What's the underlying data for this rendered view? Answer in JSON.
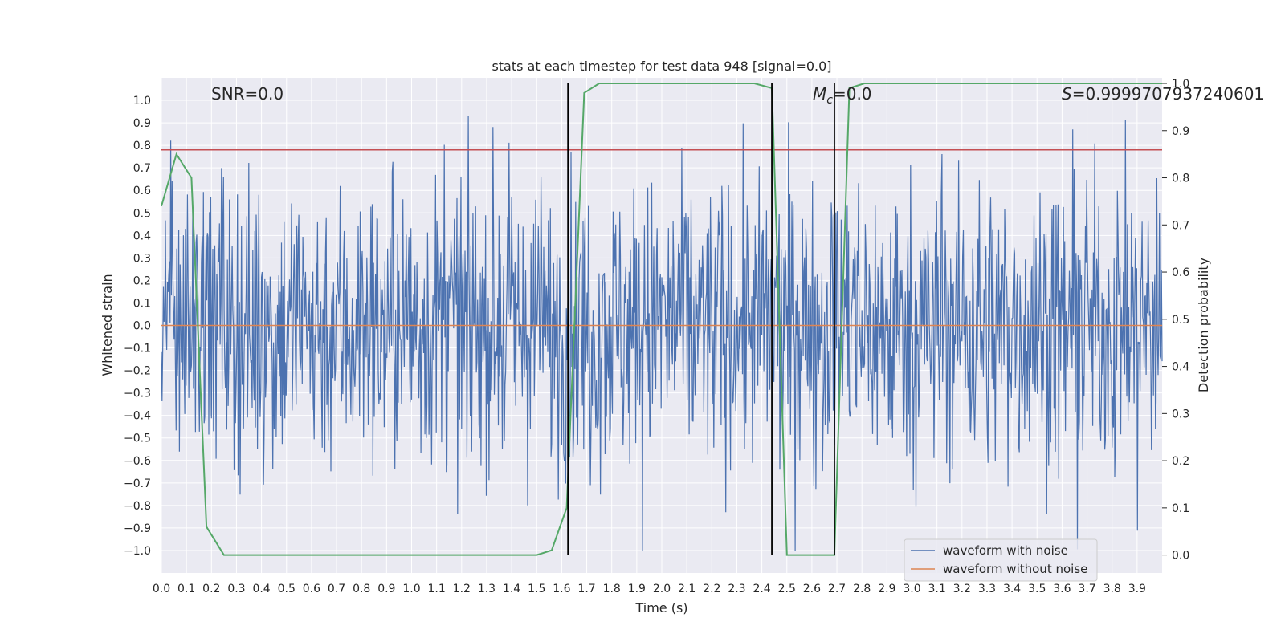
{
  "chart_data": {
    "type": "line",
    "title": "stats at each timestep for test data 948 [signal=0.0]",
    "xlabel": "Time (s)",
    "ylabel": "Whitened strain",
    "y2label": "Detection probability",
    "xlim": [
      0.0,
      4.0
    ],
    "ylim": [
      -1.1,
      1.1
    ],
    "y2lim": [
      -0.05,
      1.0
    ],
    "x_ticks": [
      0.0,
      0.1,
      0.2,
      0.3,
      0.4,
      0.5,
      0.6,
      0.7,
      0.8,
      0.9,
      1.0,
      1.1,
      1.2,
      1.3,
      1.4,
      1.5,
      1.6,
      1.7,
      1.8,
      1.9,
      2.0,
      2.1,
      2.2,
      2.3,
      2.4,
      2.5,
      2.6,
      2.7,
      2.8,
      2.9,
      3.0,
      3.1,
      3.2,
      3.3,
      3.4,
      3.5,
      3.6,
      3.7,
      3.8,
      3.9
    ],
    "y_ticks": [
      1.0,
      0.9,
      0.8,
      0.7,
      0.6,
      0.5,
      0.4,
      0.3,
      0.2,
      0.1,
      0.0,
      -0.1,
      -0.2,
      -0.3,
      -0.4,
      -0.5,
      -0.6,
      -0.7,
      -0.8,
      -0.9,
      -1.0
    ],
    "y2_ticks": [
      0.0,
      0.1,
      0.2,
      0.3,
      0.4,
      0.5,
      0.6,
      0.7,
      0.8,
      0.9,
      1.0
    ],
    "annotations": {
      "snr": "SNR=0.0",
      "mc_main": "M",
      "mc_sub": "c",
      "mc_value": "=0.0",
      "s_main": "S",
      "s_value": "=0.9999707937240601"
    },
    "threshold_y": 0.78,
    "trigger_times": [
      1.625,
      2.44,
      2.69
    ],
    "detection_probability": {
      "x": [
        0.0,
        0.06,
        0.12,
        0.18,
        0.25,
        0.31,
        0.37,
        0.44,
        0.5,
        0.56,
        0.62,
        0.69,
        0.75,
        0.81,
        0.87,
        0.94,
        1.0,
        1.06,
        1.12,
        1.19,
        1.25,
        1.31,
        1.37,
        1.44,
        1.5,
        1.56,
        1.62,
        1.69,
        1.75,
        1.81,
        1.87,
        1.94,
        2.0,
        2.06,
        2.12,
        2.19,
        2.25,
        2.31,
        2.37,
        2.44,
        2.5,
        2.56,
        2.62,
        2.69,
        2.75,
        2.81,
        2.87,
        2.94,
        3.0,
        3.06,
        3.12,
        3.19,
        3.25,
        3.31,
        3.37,
        3.44,
        3.5,
        3.56,
        3.62,
        3.69,
        3.75,
        3.81,
        3.87,
        3.94,
        4.0
      ],
      "values": [
        0.74,
        0.85,
        0.8,
        0.06,
        0.0,
        0.0,
        0.0,
        0.0,
        0.0,
        0.0,
        0.0,
        0.0,
        0.0,
        0.0,
        0.0,
        0.0,
        0.0,
        0.0,
        0.0,
        0.0,
        0.0,
        0.0,
        0.0,
        0.0,
        0.0,
        0.01,
        0.1,
        0.98,
        1.0,
        1.0,
        1.0,
        1.0,
        1.0,
        1.0,
        1.0,
        1.0,
        1.0,
        1.0,
        1.0,
        0.99,
        0.0,
        0.0,
        0.0,
        0.0,
        0.99,
        1.0,
        1.0,
        1.0,
        1.0,
        1.0,
        1.0,
        1.0,
        1.0,
        1.0,
        1.0,
        1.0,
        1.0,
        1.0,
        1.0,
        1.0,
        1.0,
        1.0,
        1.0,
        1.0,
        1.0
      ]
    },
    "series": [
      {
        "name": "waveform with noise",
        "color": "#4c72b0",
        "values_description": "dense noisy strain samples roughly within [-1.0, 1.0]"
      },
      {
        "name": "waveform without noise",
        "color": "#dd8452",
        "values": [
          0.0,
          0.0
        ]
      }
    ],
    "colors": {
      "noise": "#4c72b0",
      "clean": "#dd8452",
      "probability": "#55a868",
      "threshold": "#c44e52",
      "trigger": "#000000",
      "plot_bg": "#eaeaf2",
      "grid": "#ffffff"
    },
    "legend_loc": "lower-right"
  }
}
